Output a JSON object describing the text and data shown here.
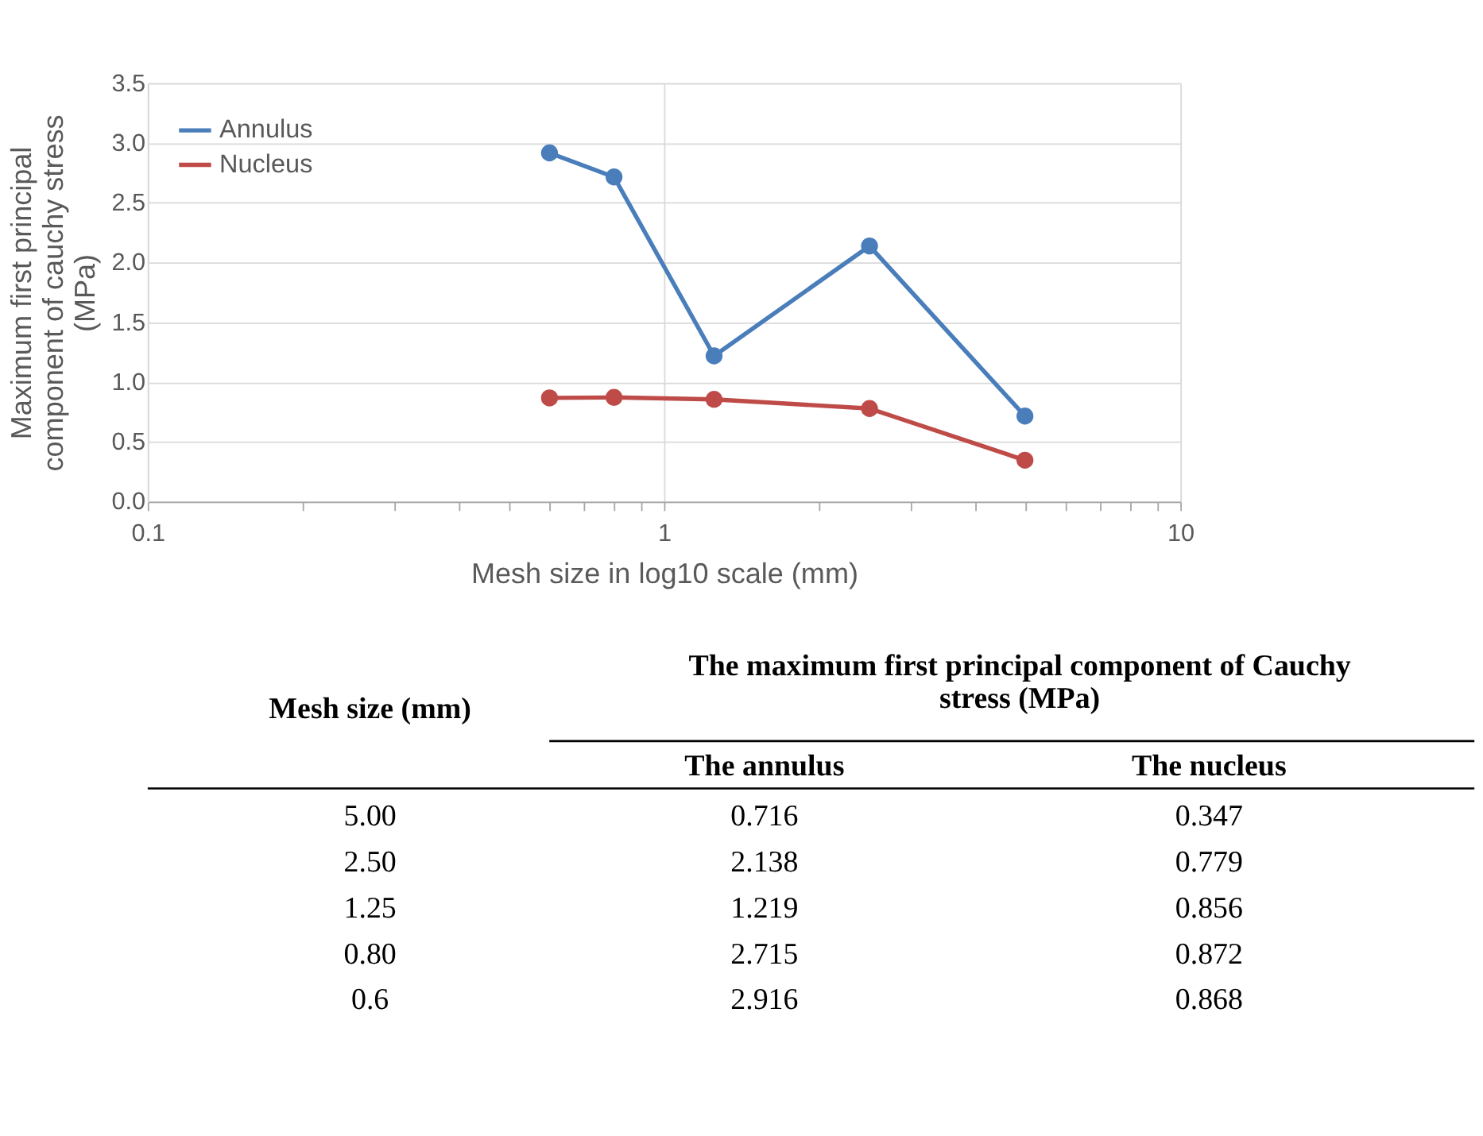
{
  "chart_data": [
    {
      "type": "line",
      "xlabel": "Mesh size in log10 scale (mm)",
      "ylabel": "Maximum first principal component of cauchy stress (MPa)",
      "x": [
        5.0,
        2.5,
        1.25,
        0.8,
        0.6
      ],
      "series": [
        {
          "name": "Annulus",
          "color": "#4a7ebb",
          "values": [
            0.716,
            2.138,
            1.219,
            2.715,
            2.916
          ]
        },
        {
          "name": "Nucleus",
          "color": "#be4b48",
          "values": [
            0.347,
            0.779,
            0.856,
            0.872,
            0.868
          ]
        }
      ],
      "log": "x",
      "xlim": [
        0.1,
        10
      ],
      "xticks": [
        0.1,
        {
          "value": 0.2,
          "label": null
        },
        {
          "value": 0.3,
          "label": null
        },
        {
          "value": 0.4,
          "label": null
        },
        {
          "value": 0.5,
          "label": null
        },
        {
          "value": 0.6,
          "label": null
        },
        {
          "value": 0.7,
          "label": null
        },
        {
          "value": 0.8,
          "label": null
        },
        {
          "value": 0.9,
          "label": null
        },
        1,
        {
          "value": 2,
          "label": null
        },
        {
          "value": 3,
          "label": null
        },
        {
          "value": 4,
          "label": null
        },
        {
          "value": 5,
          "label": null
        },
        {
          "value": 6,
          "label": null
        },
        {
          "value": 7,
          "label": null
        },
        {
          "value": 8,
          "label": null
        },
        {
          "value": 9,
          "label": null
        },
        10
      ],
      "ylim": [
        0,
        3.5
      ],
      "yticks": [
        {
          "value": 0,
          "label": "0.0"
        },
        0.5,
        {
          "value": 1,
          "label": "1.0"
        },
        1.5,
        {
          "value": 2,
          "label": "2.0"
        },
        2.5,
        {
          "value": 3,
          "label": "3.0"
        },
        3.5
      ],
      "grid": true,
      "legend": "top left",
      "marker": "circle",
      "line_style": "solid"
    },
    {
      "type": "other",
      "annotations": [
        "Mesh size (mm)",
        "The maximum first principal component of Cauchy stress (MPa)",
        "The annulus",
        "The nucleus",
        "5.00",
        "0.716",
        "0.347",
        "2.50",
        "2.138",
        "0.779",
        "1.25",
        "1.219",
        "0.856",
        "0.80",
        "2.715",
        "0.872",
        "0.6",
        "2.916",
        "0.868"
      ]
    }
  ]
}
